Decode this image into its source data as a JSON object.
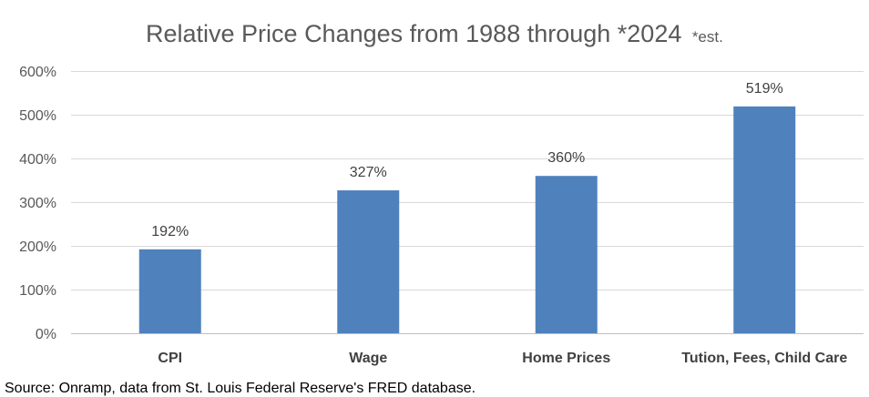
{
  "chart_data": {
    "type": "bar",
    "title": "Relative Price Changes from 1988 through *2024",
    "title_note": "*est.",
    "categories": [
      "CPI",
      "Wage",
      "Home Prices",
      "Tution, Fees, Child Care"
    ],
    "values": [
      192,
      327,
      360,
      519
    ],
    "data_labels": [
      "192%",
      "327%",
      "360%",
      "519%"
    ],
    "y_ticks": [
      0,
      100,
      200,
      300,
      400,
      500,
      600
    ],
    "y_tick_labels": [
      "0%",
      "100%",
      "200%",
      "300%",
      "400%",
      "500%",
      "600%"
    ],
    "ylim": [
      0,
      600
    ],
    "xlabel": "",
    "ylabel": "",
    "grid": true,
    "legend": "none",
    "bar_color": "#4f81bd",
    "grid_color": "#d9d9d9"
  },
  "source_note": "Source: Onramp, data from St. Louis Federal Reserve's FRED database."
}
